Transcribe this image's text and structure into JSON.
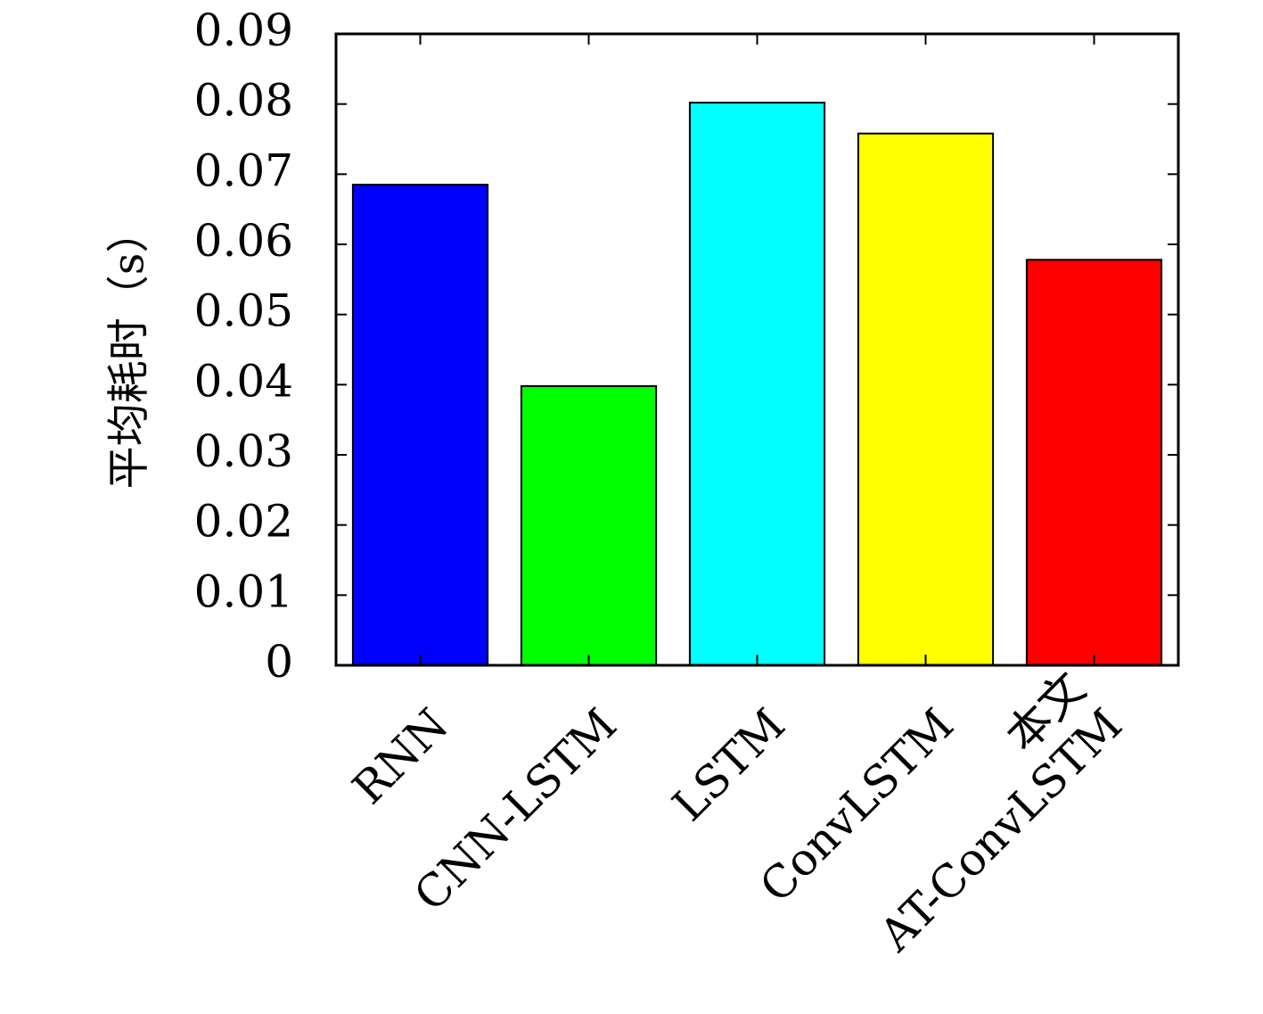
{
  "chart_data": {
    "type": "bar",
    "title": "",
    "xlabel": "",
    "ylabel": "平均耗时（s）",
    "categories": [
      [
        "RNN"
      ],
      [
        "CNN-LSTM"
      ],
      [
        "LSTM"
      ],
      [
        "ConvLSTM"
      ],
      [
        "本文",
        "AT-ConvLSTM"
      ]
    ],
    "values": [
      0.0685,
      0.0398,
      0.0802,
      0.0758,
      0.0578
    ],
    "colors": [
      "#0000ff",
      "#00ff00",
      "#00ffff",
      "#ffff00",
      "#ff0000"
    ],
    "ylim": [
      0,
      0.09
    ],
    "yticks": [
      0,
      0.01,
      0.02,
      0.03,
      0.04,
      0.05,
      0.06,
      0.07,
      0.08,
      0.09
    ],
    "ytick_labels": [
      "0",
      "0.01",
      "0.02",
      "0.03",
      "0.04",
      "0.05",
      "0.06",
      "0.07",
      "0.08",
      "0.09"
    ],
    "grid": false,
    "legend": "none"
  }
}
